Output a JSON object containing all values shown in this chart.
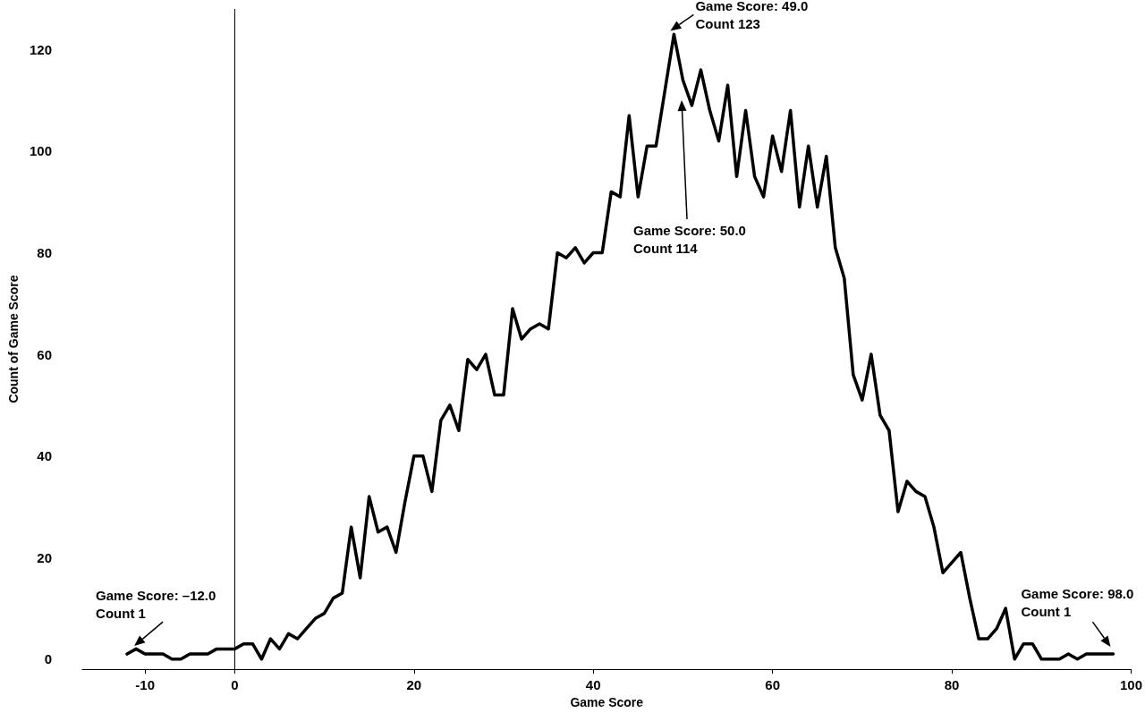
{
  "chart_data": {
    "type": "line",
    "xlabel": "Game Score",
    "ylabel": "Count of Game Score",
    "x": [
      -12,
      -11,
      -10,
      -9,
      -8,
      -7,
      -6,
      -5,
      -4,
      -3,
      -2,
      -1,
      0,
      1,
      2,
      3,
      4,
      5,
      6,
      7,
      8,
      9,
      10,
      11,
      12,
      13,
      14,
      15,
      16,
      17,
      18,
      19,
      20,
      21,
      22,
      23,
      24,
      25,
      26,
      27,
      28,
      29,
      30,
      31,
      32,
      33,
      34,
      35,
      36,
      37,
      38,
      39,
      40,
      41,
      42,
      43,
      44,
      45,
      46,
      47,
      48,
      49,
      50,
      51,
      52,
      53,
      54,
      55,
      56,
      57,
      58,
      59,
      60,
      61,
      62,
      63,
      64,
      65,
      66,
      67,
      68,
      69,
      70,
      71,
      72,
      73,
      74,
      75,
      76,
      77,
      78,
      79,
      80,
      81,
      82,
      83,
      84,
      85,
      86,
      87,
      88,
      89,
      90,
      91,
      92,
      93,
      94,
      95,
      96,
      97,
      98
    ],
    "series": [
      {
        "color": "#000000",
        "values": [
          1,
          2,
          1,
          1,
          1,
          0,
          0,
          1,
          1,
          1,
          2,
          2,
          2,
          3,
          3,
          0,
          4,
          2,
          5,
          4,
          6,
          8,
          9,
          12,
          13,
          26,
          16,
          32,
          25,
          26,
          21,
          31,
          40,
          40,
          33,
          47,
          50,
          45,
          59,
          57,
          60,
          52,
          52,
          69,
          63,
          65,
          66,
          65,
          80,
          79,
          81,
          78,
          80,
          80,
          92,
          91,
          107,
          91,
          101,
          101,
          112,
          123,
          114,
          109,
          116,
          108,
          102,
          113,
          95,
          108,
          95,
          91,
          103,
          96,
          108,
          89,
          101,
          89,
          99,
          81,
          75,
          56,
          51,
          60,
          48,
          45,
          29,
          35,
          33,
          32,
          26,
          17,
          19,
          21,
          12,
          4,
          4,
          6,
          10,
          0,
          3,
          3,
          0,
          0,
          0,
          1,
          0,
          1,
          1,
          1,
          1
        ]
      }
    ],
    "xlim": [
      -17,
      100
    ],
    "xticks": [
      -10,
      0,
      20,
      40,
      60,
      80,
      100
    ],
    "ylim": [
      -2,
      128
    ],
    "yticks": [
      0,
      20,
      40,
      60,
      80,
      100,
      120
    ],
    "ref_lines": [
      {
        "axis": "x",
        "value": 0,
        "label": null,
        "color": "#000000"
      }
    ],
    "annotations": [
      {
        "text": "Game Score: –12.0\nCount 1",
        "x": -12,
        "y": 1
      },
      {
        "text": "Game Score: 49.0\nCount 123",
        "x": 49,
        "y": 123
      },
      "Game Score: 50.0\nCount 114",
      {
        "text": "Game Score: 98.0\nCount 1",
        "x": 98,
        "y": 1
      }
    ],
    "grid": false,
    "marker": "none",
    "line_style": "solid"
  }
}
